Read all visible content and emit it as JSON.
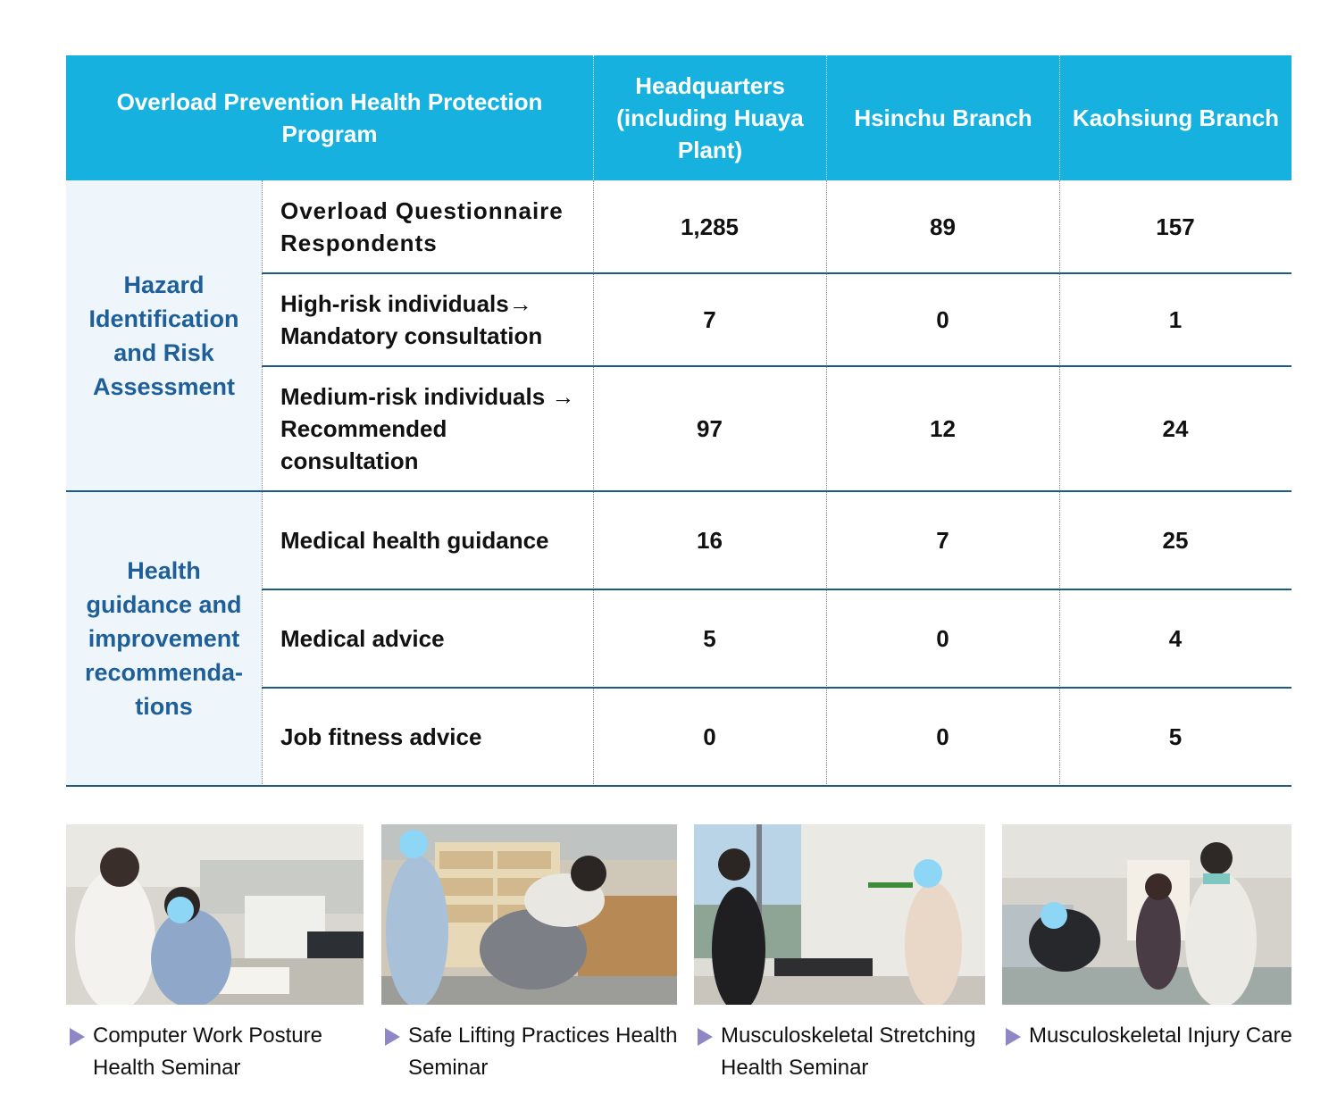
{
  "table": {
    "header": {
      "program": "Overload Prevention Health Protection Program",
      "sites": [
        "Headquarters (including Huaya Plant)",
        "Hsinchu Branch",
        "Kaohsiung Branch"
      ]
    },
    "sections": [
      {
        "category": "Hazard Identification and Risk Assessment",
        "rows": [
          {
            "item": "Overload Questionnaire Respondents",
            "values": [
              "1,285",
              "89",
              "157"
            ]
          },
          {
            "item": "High-risk individuals→ Mandatory consultation",
            "values": [
              "7",
              "0",
              "1"
            ]
          },
          {
            "item": "Medium-risk individuals → Recommended consultation",
            "values": [
              "97",
              "12",
              "24"
            ]
          }
        ]
      },
      {
        "category": "Health guidance and improvement recommenda-tions",
        "rows": [
          {
            "item": "Medical health guidance",
            "values": [
              "16",
              "7",
              "25"
            ]
          },
          {
            "item": "Medical advice",
            "values": [
              "5",
              "0",
              "4"
            ]
          },
          {
            "item": "Job fitness advice",
            "values": [
              "0",
              "0",
              "5"
            ]
          }
        ]
      }
    ]
  },
  "photos": [
    {
      "caption": "Computer Work Posture Health Seminar",
      "icon": "triangle-bullet-icon"
    },
    {
      "caption": "Safe Lifting Practices Health Seminar",
      "icon": "triangle-bullet-icon"
    },
    {
      "caption": "Musculoskeletal Stretching Health Seminar",
      "icon": "triangle-bullet-icon"
    },
    {
      "caption": "Musculoskeletal Injury Care",
      "icon": "triangle-bullet-icon"
    }
  ],
  "colors": {
    "header_bg": "#17b1e0",
    "category_bg": "#eef6fc",
    "category_text": "#1e5f99",
    "row_rule": "#1c5b86",
    "bullet": "#8f86c5"
  }
}
